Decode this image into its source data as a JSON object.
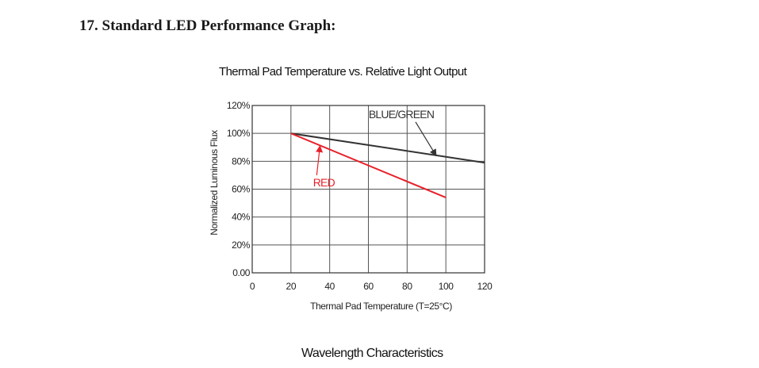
{
  "document": {
    "heading": "17. Standard LED Performance Graph:",
    "next_section": "Wavelength Characteristics"
  },
  "chart_data": {
    "type": "line",
    "title": "Thermal Pad Temperature vs. Relative Light Output",
    "xlabel": "Thermal Pad Temperature (T=25°C)",
    "ylabel": "Normalized Luminous Flux",
    "xlim": [
      0,
      120
    ],
    "ylim": [
      0,
      120
    ],
    "x_ticks": [
      0,
      20,
      40,
      60,
      80,
      100,
      120
    ],
    "x_tick_labels": [
      "0",
      "20",
      "40",
      "60",
      "80",
      "100",
      "120"
    ],
    "y_ticks": [
      0,
      20,
      40,
      60,
      80,
      100,
      120
    ],
    "y_tick_labels": [
      "0.00",
      "20%",
      "40%",
      "60%",
      "80%",
      "100%",
      "120%"
    ],
    "grid": true,
    "series": [
      {
        "name": "BLUE/GREEN",
        "color": "#333333",
        "points": [
          [
            20,
            100
          ],
          [
            120,
            79
          ]
        ]
      },
      {
        "name": "RED",
        "color": "#e8202a",
        "points": [
          [
            20,
            100
          ],
          [
            100,
            54
          ]
        ]
      }
    ],
    "annotations": [
      {
        "series": 0,
        "text": "BLUE/GREEN",
        "label_at": [
          77,
          111
        ],
        "arrow_to": [
          95,
          84
        ]
      },
      {
        "series": 1,
        "text": "RED",
        "label_at": [
          37,
          62
        ],
        "arrow_to": [
          35,
          91
        ]
      }
    ]
  }
}
